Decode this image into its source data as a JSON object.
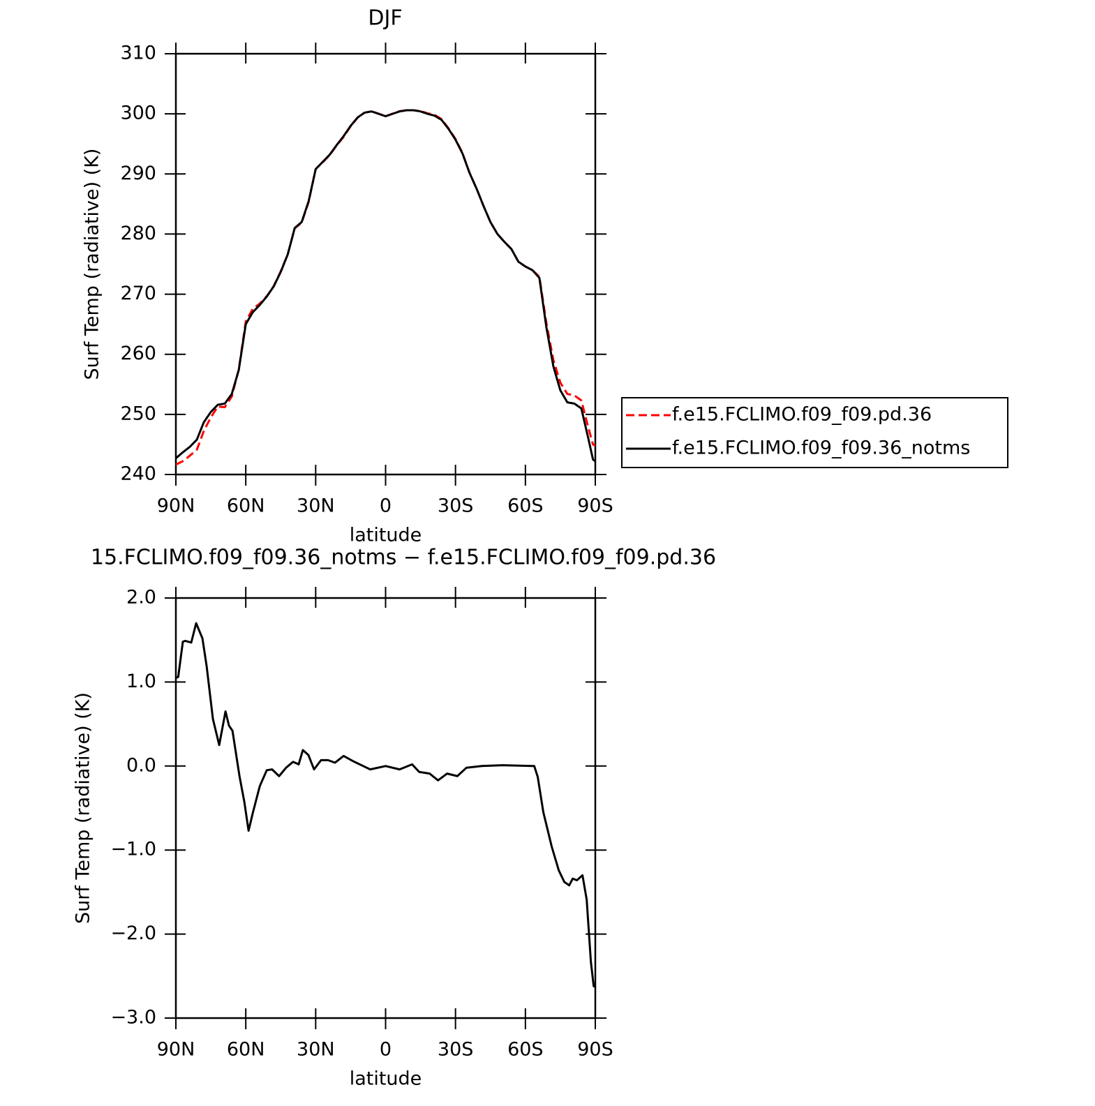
{
  "chart_data": [
    {
      "type": "line",
      "title": "DJF",
      "xlabel": "latitude",
      "ylabel": "Surf Temp (radiative) (K)",
      "x": [
        90,
        87,
        84,
        81,
        78,
        75,
        72,
        69,
        66,
        63,
        60,
        57,
        54,
        51,
        48,
        45,
        42,
        39,
        36,
        33,
        30,
        27,
        24,
        21,
        18,
        15,
        12,
        9,
        6,
        3,
        0,
        -3,
        -6,
        -9,
        -12,
        -15,
        -18,
        -21,
        -24,
        -27,
        -30,
        -33,
        -36,
        -39,
        -42,
        -45,
        -48,
        -51,
        -54,
        -57,
        -60,
        -63,
        -66,
        -69,
        -72,
        -75,
        -78,
        -81,
        -84,
        -87,
        -89,
        -90
      ],
      "xlim": [
        90,
        -90
      ],
      "xticks": [
        {
          "value": 90,
          "label": "90N"
        },
        {
          "value": 60,
          "label": "60N"
        },
        {
          "value": 30,
          "label": "30N"
        },
        0,
        {
          "value": -30,
          "label": "30S"
        },
        {
          "value": -60,
          "label": "60S"
        },
        {
          "value": -90,
          "label": "90S"
        }
      ],
      "ylim": [
        240,
        310
      ],
      "yticks": [
        240,
        250,
        260,
        270,
        280,
        290,
        300,
        310
      ],
      "legend": "right",
      "series": [
        {
          "name": "f.e15.FCLIMO.f09_f09.pd.36",
          "color": "#ff0000",
          "dashed": true,
          "values": [
            241.65,
            242.22,
            243.13,
            244.12,
            247.25,
            249.5,
            251.3,
            251.2,
            252.98,
            257.5,
            265.45,
            267.56,
            268.44,
            269.65,
            271.35,
            273.8,
            276.62,
            280.96,
            281.9,
            285.37,
            290.82,
            291.93,
            293.13,
            294.75,
            296.18,
            297.93,
            299.37,
            300.2,
            300.43,
            300.02,
            299.6,
            300.02,
            300.44,
            300.6,
            300.59,
            300.46,
            300.09,
            299.84,
            299.13,
            297.59,
            295.82,
            293.48,
            290.21,
            287.6,
            284.7,
            282,
            280,
            278.7,
            277.5,
            275.4,
            274.6,
            274,
            272.9,
            265.2,
            259.05,
            255.28,
            253.4,
            253.16,
            252.32,
            247.8,
            245,
            244.8
          ]
        },
        {
          "name": "f.e15.FCLIMO.f09_f09.36_notms",
          "color": "#000000",
          "dashed": false,
          "values": [
            242.7,
            243.7,
            244.6,
            245.8,
            248.7,
            250.4,
            251.6,
            251.8,
            253.4,
            257.4,
            265,
            267,
            268.2,
            269.6,
            271.3,
            273.7,
            276.6,
            281,
            282,
            285.5,
            290.8,
            292,
            293.2,
            294.8,
            296.3,
            298,
            299.4,
            300.2,
            300.4,
            300,
            299.6,
            300,
            300.4,
            300.6,
            300.6,
            300.4,
            300,
            299.7,
            299,
            297.5,
            295.7,
            293.4,
            290.2,
            287.6,
            284.7,
            282,
            280,
            278.7,
            277.5,
            275.4,
            274.6,
            274,
            272.7,
            264.5,
            258,
            254,
            252,
            251.8,
            251,
            246,
            242.5,
            242.2
          ]
        }
      ]
    },
    {
      "type": "line",
      "title": "15.FCLIMO.f09_f09.36_notms − f.e15.FCLIMO.f09_f09.pd.36",
      "xlabel": "latitude",
      "ylabel": "Surf Temp (radiative) (K)",
      "x": [
        90,
        89,
        87,
        86,
        83.4,
        81.3,
        78.6,
        76.8,
        74.1,
        71.4,
        68.7,
        67.2,
        65.7,
        62.7,
        60.6,
        58.8,
        57,
        54,
        51,
        48.7,
        45.7,
        42.7,
        39.7,
        37.3,
        35.5,
        33.1,
        30.7,
        27.7,
        24.7,
        21.7,
        18,
        14.1,
        9.6,
        6.6,
        0,
        -6,
        -11.4,
        -14.4,
        -18.9,
        -22.5,
        -26.4,
        -30.8,
        -34.7,
        -41.3,
        -50.3,
        -63.8,
        -65.3,
        -67.7,
        -71.3,
        -74.3,
        -76.7,
        -78.8,
        -80.3,
        -82.1,
        -84.5,
        -86.3,
        -88.1,
        -89.3,
        -90
      ],
      "xlim": [
        90,
        -90
      ],
      "xticks": [
        {
          "value": 90,
          "label": "90N"
        },
        {
          "value": 60,
          "label": "60N"
        },
        {
          "value": 30,
          "label": "30N"
        },
        0,
        {
          "value": -30,
          "label": "30S"
        },
        {
          "value": -60,
          "label": "60S"
        },
        {
          "value": -90,
          "label": "90S"
        }
      ],
      "ylim": [
        -3,
        2
      ],
      "yticks": [
        {
          "value": -3,
          "label": "−3.0"
        },
        {
          "value": -2,
          "label": "−2.0"
        },
        {
          "value": -1,
          "label": "−1.0"
        },
        {
          "value": 0,
          "label": "0.0"
        },
        {
          "value": 1,
          "label": "1.0"
        },
        {
          "value": 2,
          "label": "2.0"
        }
      ],
      "series": [
        {
          "color": "#000000",
          "dashed": false,
          "values": [
            1.05,
            1.06,
            1.48,
            1.49,
            1.47,
            1.7,
            1.52,
            1.19,
            0.56,
            0.25,
            0.65,
            0.48,
            0.42,
            -0.12,
            -0.43,
            -0.77,
            -0.56,
            -0.24,
            -0.05,
            -0.04,
            -0.12,
            -0.02,
            0.05,
            0.02,
            0.19,
            0.13,
            -0.04,
            0.07,
            0.07,
            0.04,
            0.12,
            0.06,
            0,
            -0.04,
            0,
            -0.04,
            0.02,
            -0.07,
            -0.09,
            -0.17,
            -0.09,
            -0.12,
            -0.02,
            0,
            0.01,
            0,
            -0.13,
            -0.55,
            -0.96,
            -1.24,
            -1.38,
            -1.42,
            -1.34,
            -1.36,
            -1.3,
            -1.59,
            -2.33,
            -2.62,
            -2.63
          ]
        }
      ]
    }
  ]
}
